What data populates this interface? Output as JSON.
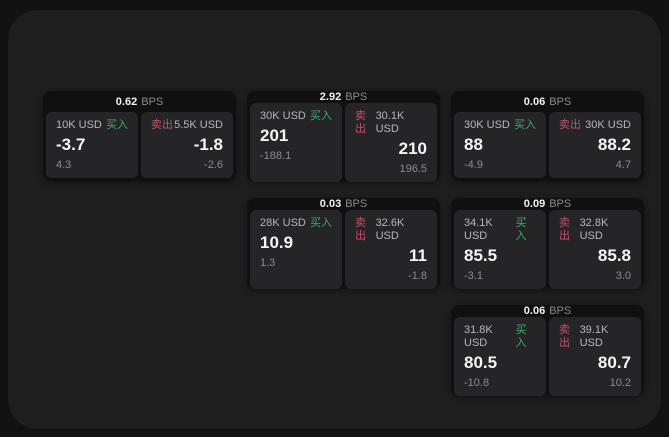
{
  "labels": {
    "bps_unit": "BPS",
    "buy": "买入",
    "sell": "卖出"
  },
  "colors": {
    "buy_green": "#3fab6a",
    "sell_red": "#c34f68",
    "panel_background": "#1e1e1f",
    "card_background": "#101011",
    "subpanel_background": "#252527"
  },
  "cards": [
    {
      "bps": "0.62",
      "buy": {
        "amount": "10K USD",
        "price": "-3.7",
        "delta": "4.3"
      },
      "sell": {
        "amount": "5.5K USD",
        "price": "-1.8",
        "delta": "-2.6"
      }
    },
    {
      "bps": "2.92",
      "buy": {
        "amount": "30K USD",
        "price": "201",
        "delta": "-188.1"
      },
      "sell": {
        "amount": "30.1K USD",
        "price": "210",
        "delta": "196.5"
      }
    },
    {
      "bps": "0.06",
      "buy": {
        "amount": "30K USD",
        "price": "88",
        "delta": "-4.9"
      },
      "sell": {
        "amount": "30K USD",
        "price": "88.2",
        "delta": "4.7"
      }
    },
    {
      "bps": "0.03",
      "buy": {
        "amount": "28K USD",
        "price": "10.9",
        "delta": "1.3"
      },
      "sell": {
        "amount": "32.6K USD",
        "price": "11",
        "delta": "-1.8"
      }
    },
    {
      "bps": "0.09",
      "buy": {
        "amount": "34.1K USD",
        "price": "85.5",
        "delta": "-3.1"
      },
      "sell": {
        "amount": "32.8K USD",
        "price": "85.8",
        "delta": "3.0"
      }
    },
    {
      "bps": "0.06",
      "buy": {
        "amount": "31.8K USD",
        "price": "80.5",
        "delta": "-10.8"
      },
      "sell": {
        "amount": "39.1K USD",
        "price": "80.7",
        "delta": "10.2"
      }
    }
  ]
}
